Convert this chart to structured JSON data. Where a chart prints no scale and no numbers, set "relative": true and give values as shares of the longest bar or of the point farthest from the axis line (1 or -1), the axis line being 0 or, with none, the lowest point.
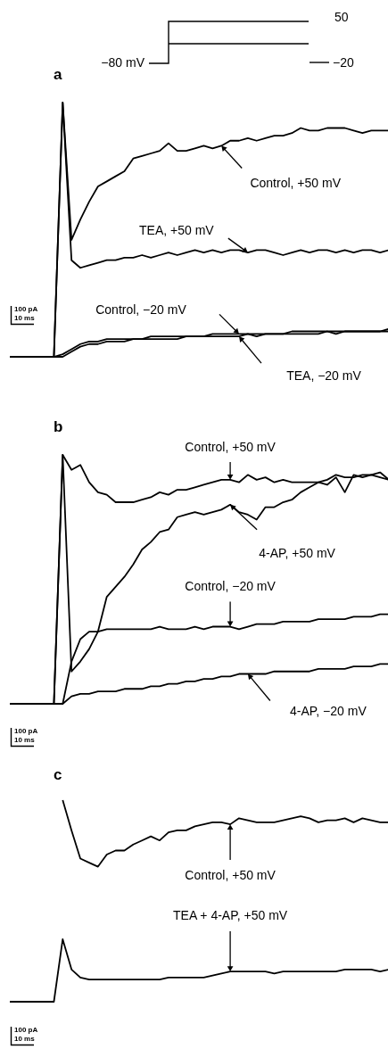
{
  "chart_data": [
    {
      "type": "line",
      "title": "a",
      "relative": true,
      "categories": [
        null,
        null,
        null,
        null,
        null,
        null,
        null,
        null,
        null,
        null,
        null,
        null,
        null,
        null,
        null,
        null,
        null,
        null,
        null,
        null,
        null,
        null,
        null,
        null,
        null,
        null,
        null,
        null,
        null,
        null,
        null,
        null,
        null,
        null,
        null,
        null,
        null,
        null,
        null,
        null,
        null,
        null,
        null,
        null
      ],
      "annotations": [
        "−80 mV",
        "50",
        "−20",
        "100 pA",
        "10 ms"
      ],
      "series": [
        {
          "name": "Control, +50 mV",
          "color": "#000000",
          "values": [
            0,
            0,
            0,
            0,
            0,
            0,
            1,
            0.46,
            0.54,
            0.61,
            0.67,
            0.69,
            0.71,
            0.73,
            0.78,
            0.79,
            0.8,
            0.81,
            0.84,
            0.81,
            0.81,
            0.82,
            0.83,
            0.82,
            0.83,
            0.85,
            0.85,
            0.86,
            0.85,
            0.86,
            0.87,
            0.87,
            0.88,
            0.9,
            0.89,
            0.89,
            0.9,
            0.9,
            0.9,
            0.89,
            0.88,
            0.89,
            0.89,
            0.89
          ]
        },
        {
          "name": "TEA, +50 mV",
          "color": "#000000",
          "values": [
            0,
            0,
            0,
            0,
            0,
            0,
            1,
            0.38,
            0.35,
            0.36,
            0.37,
            0.38,
            0.38,
            0.39,
            0.39,
            0.4,
            0.39,
            0.4,
            0.41,
            0.4,
            0.41,
            0.42,
            0.41,
            0.42,
            0.41,
            0.42,
            0.42,
            0.41,
            0.42,
            0.42,
            0.41,
            0.4,
            0.41,
            0.42,
            0.41,
            0.42,
            0.42,
            0.41,
            0.42,
            0.41,
            0.42,
            0.42,
            0.41,
            0.42
          ]
        },
        {
          "name": "Control, −20 mV",
          "color": "#000000",
          "values": [
            0,
            0,
            0,
            0,
            0,
            0,
            0.01,
            0.03,
            0.05,
            0.06,
            0.06,
            0.07,
            0.07,
            0.07,
            0.07,
            0.07,
            0.08,
            0.08,
            0.08,
            0.08,
            0.08,
            0.08,
            0.08,
            0.09,
            0.09,
            0.09,
            0.09,
            0.09,
            0.09,
            0.09,
            0.09,
            0.09,
            0.1,
            0.1,
            0.1,
            0.1,
            0.1,
            0.1,
            0.1,
            0.1,
            0.1,
            0.1,
            0.1,
            0.11
          ]
        },
        {
          "name": "TEA, −20 mV",
          "color": "#000000",
          "values": [
            0,
            0,
            0,
            0,
            0,
            0,
            0,
            0.02,
            0.04,
            0.05,
            0.05,
            0.06,
            0.06,
            0.06,
            0.07,
            0.07,
            0.07,
            0.07,
            0.07,
            0.07,
            0.08,
            0.08,
            0.08,
            0.08,
            0.08,
            0.08,
            0.08,
            0.09,
            0.08,
            0.09,
            0.09,
            0.09,
            0.09,
            0.09,
            0.09,
            0.09,
            0.1,
            0.09,
            0.1,
            0.1,
            0.1,
            0.1,
            0.1,
            0.1
          ]
        }
      ]
    },
    {
      "type": "line",
      "title": "b",
      "relative": true,
      "categories": [
        null,
        null,
        null,
        null,
        null,
        null,
        null,
        null,
        null,
        null,
        null,
        null,
        null,
        null,
        null,
        null,
        null,
        null,
        null,
        null,
        null,
        null,
        null,
        null,
        null,
        null,
        null,
        null,
        null,
        null,
        null,
        null,
        null,
        null,
        null,
        null,
        null,
        null,
        null,
        null,
        null,
        null,
        null,
        null
      ],
      "annotations": [
        "100 pA",
        "10 ms"
      ],
      "series": [
        {
          "name": "Control, +50 mV",
          "color": "#000000",
          "values": [
            0,
            0,
            0,
            0,
            0,
            0,
            1,
            0.94,
            0.96,
            0.89,
            0.85,
            0.84,
            0.81,
            0.81,
            0.81,
            0.82,
            0.83,
            0.85,
            0.84,
            0.86,
            0.86,
            0.87,
            0.88,
            0.89,
            0.9,
            0.9,
            0.89,
            0.92,
            0.9,
            0.91,
            0.89,
            0.9,
            0.89,
            0.89,
            0.89,
            0.89,
            0.9,
            0.92,
            0.91,
            0.91,
            0.92,
            0.92,
            0.93,
            0.9
          ]
        },
        {
          "name": "4-AP, +50 mV",
          "color": "#000000",
          "values": [
            0,
            0,
            0,
            0,
            0,
            0,
            1,
            0.13,
            0.17,
            0.22,
            0.29,
            0.43,
            0.47,
            0.51,
            0.56,
            0.62,
            0.65,
            0.69,
            0.7,
            0.75,
            0.76,
            0.77,
            0.76,
            0.77,
            0.78,
            0.8,
            0.77,
            0.76,
            0.74,
            0.79,
            0.79,
            0.81,
            0.82,
            0.85,
            0.87,
            0.89,
            0.88,
            0.91,
            0.85,
            0.92,
            0.91,
            0.92,
            0.91,
            0.9
          ]
        },
        {
          "name": "Control, −20 mV",
          "color": "#000000",
          "values": [
            0,
            0,
            0,
            0,
            0,
            0,
            0,
            0.17,
            0.26,
            0.29,
            0.29,
            0.3,
            0.3,
            0.3,
            0.3,
            0.3,
            0.3,
            0.31,
            0.3,
            0.3,
            0.3,
            0.31,
            0.3,
            0.31,
            0.31,
            0.31,
            0.3,
            0.31,
            0.32,
            0.32,
            0.32,
            0.33,
            0.33,
            0.33,
            0.33,
            0.34,
            0.34,
            0.34,
            0.34,
            0.35,
            0.35,
            0.35,
            0.36,
            0.36
          ]
        },
        {
          "name": "4-AP, −20 mV",
          "color": "#000000",
          "values": [
            0,
            0,
            0,
            0,
            0,
            0,
            0,
            0.03,
            0.04,
            0.04,
            0.05,
            0.05,
            0.05,
            0.06,
            0.06,
            0.06,
            0.07,
            0.07,
            0.08,
            0.08,
            0.09,
            0.09,
            0.1,
            0.1,
            0.11,
            0.11,
            0.12,
            0.12,
            0.12,
            0.12,
            0.13,
            0.13,
            0.13,
            0.13,
            0.13,
            0.14,
            0.14,
            0.14,
            0.14,
            0.15,
            0.15,
            0.15,
            0.16,
            0.16
          ]
        }
      ]
    },
    {
      "type": "line",
      "title": "c",
      "relative": true,
      "categories": [
        null,
        null,
        null,
        null,
        null,
        null,
        null,
        null,
        null,
        null,
        null,
        null,
        null,
        null,
        null,
        null,
        null,
        null,
        null,
        null,
        null,
        null,
        null,
        null,
        null,
        null,
        null,
        null,
        null,
        null,
        null,
        null,
        null,
        null,
        null,
        null,
        null,
        null,
        null,
        null,
        null,
        null,
        null,
        null
      ],
      "annotations": [
        "100 pA",
        "10 ms"
      ],
      "series": [
        {
          "name": "Control, +50 mV",
          "color": "#000000",
          "values": [
            null,
            null,
            null,
            null,
            null,
            null,
            1,
            0.85,
            0.71,
            0.69,
            0.67,
            0.73,
            0.75,
            0.75,
            0.78,
            0.8,
            0.82,
            0.8,
            0.84,
            0.85,
            0.85,
            0.87,
            0.88,
            0.89,
            0.89,
            0.88,
            0.91,
            0.9,
            0.89,
            0.89,
            0.89,
            0.9,
            0.91,
            0.92,
            0.91,
            0.89,
            0.9,
            0.9,
            0.91,
            0.89,
            0.91,
            0.9,
            0.89,
            0.89
          ]
        },
        {
          "name": "TEA + 4-AP, +50 mV",
          "color": "#000000",
          "values": [
            0,
            0,
            0,
            0,
            0,
            0,
            0.31,
            0.16,
            0.12,
            0.11,
            0.11,
            0.11,
            0.11,
            0.11,
            0.11,
            0.11,
            0.11,
            0.11,
            0.12,
            0.12,
            0.12,
            0.12,
            0.12,
            0.13,
            0.14,
            0.15,
            0.15,
            0.15,
            0.15,
            0.15,
            0.14,
            0.15,
            0.15,
            0.15,
            0.15,
            0.15,
            0.15,
            0.15,
            0.16,
            0.16,
            0.16,
            0.16,
            0.15,
            0.16
          ]
        }
      ]
    }
  ]
}
